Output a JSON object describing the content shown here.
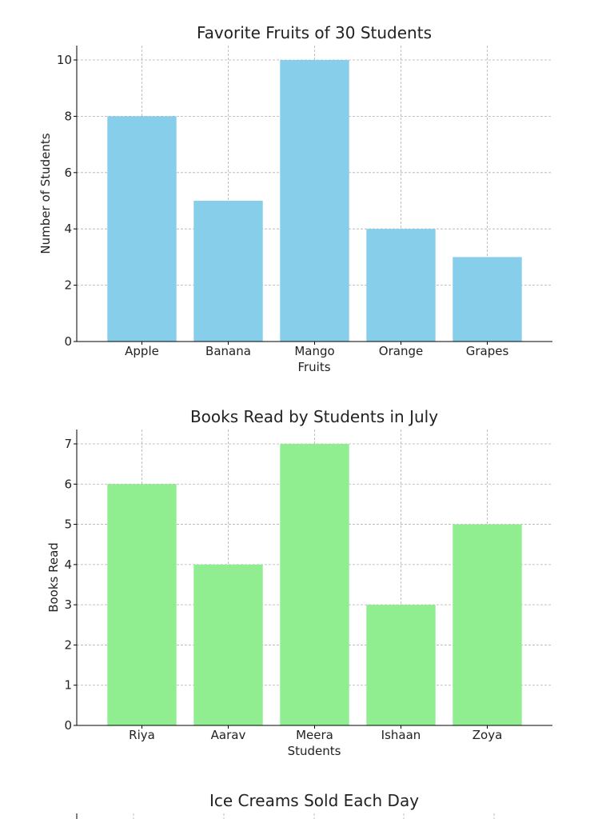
{
  "chart_data": [
    {
      "type": "bar",
      "title": "Favorite Fruits of 30 Students",
      "categories": [
        "Apple",
        "Banana",
        "Mango",
        "Orange",
        "Grapes"
      ],
      "values": [
        8,
        5,
        10,
        4,
        3
      ],
      "xlabel": "Fruits",
      "ylabel": "Number of Students",
      "ylim": [
        0,
        10
      ],
      "yticks": [
        0,
        2,
        4,
        6,
        8,
        10
      ],
      "color": "#87CEEB",
      "grid": true
    },
    {
      "type": "bar",
      "title": "Books Read by Students in July",
      "categories": [
        "Riya",
        "Aarav",
        "Meera",
        "Ishaan",
        "Zoya"
      ],
      "values": [
        6,
        4,
        7,
        3,
        5
      ],
      "xlabel": "Students",
      "ylabel": "Books Read",
      "ylim": [
        0,
        7
      ],
      "yticks": [
        0,
        1,
        2,
        3,
        4,
        5,
        6,
        7
      ],
      "color": "#90EE90",
      "grid": true
    },
    {
      "type": "bar",
      "title": "Ice Creams Sold Each Day",
      "grid": true
    }
  ]
}
